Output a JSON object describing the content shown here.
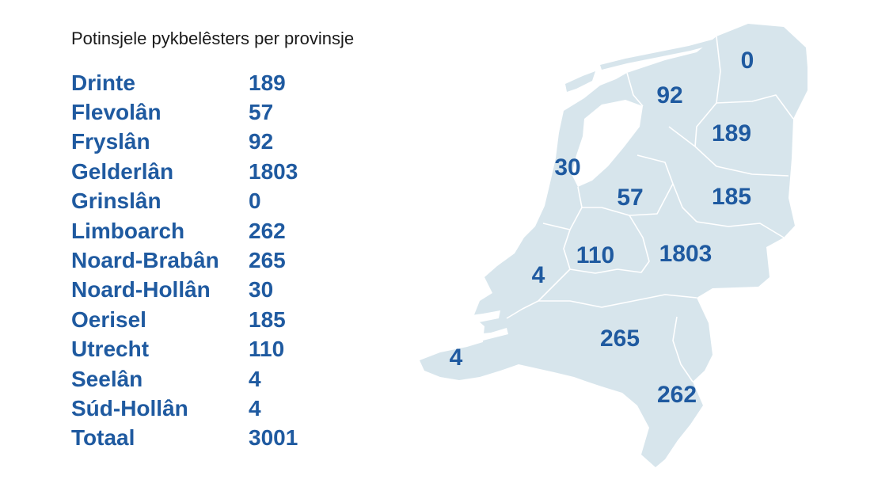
{
  "title": "Potinsjele pykbelêsters per provinsje",
  "colors": {
    "text_blue": "#1f5aa0",
    "map_fill": "#d7e5ec",
    "border": "#ffffff",
    "title_text": "#1a1a1a"
  },
  "rows": [
    {
      "name": "Drinte",
      "value": "189"
    },
    {
      "name": "Flevolân",
      "value": "57"
    },
    {
      "name": "Fryslân",
      "value": "92"
    },
    {
      "name": "Gelderlân",
      "value": "1803"
    },
    {
      "name": "Grinslân",
      "value": "0"
    },
    {
      "name": "Limboarch",
      "value": "262"
    },
    {
      "name": "Noard-Brabân",
      "value": "265"
    },
    {
      "name": "Noard-Hollân",
      "value": "30"
    },
    {
      "name": "Oerisel",
      "value": "185"
    },
    {
      "name": "Utrecht",
      "value": "110"
    },
    {
      "name": "Seelân",
      "value": "4"
    },
    {
      "name": "Súd-Hollân",
      "value": "4"
    }
  ],
  "total": {
    "name": "Totaal",
    "value": "3001"
  },
  "map_labels": {
    "grinslan": "0",
    "fryslan": "92",
    "drinte": "189",
    "noard_hollan": "30",
    "flevolan": "57",
    "oerisel": "185",
    "utrecht": "110",
    "gelderlan": "1803",
    "sud_hollan": "4",
    "seelan": "4",
    "noard_braban": "265",
    "limboarch": "262"
  }
}
